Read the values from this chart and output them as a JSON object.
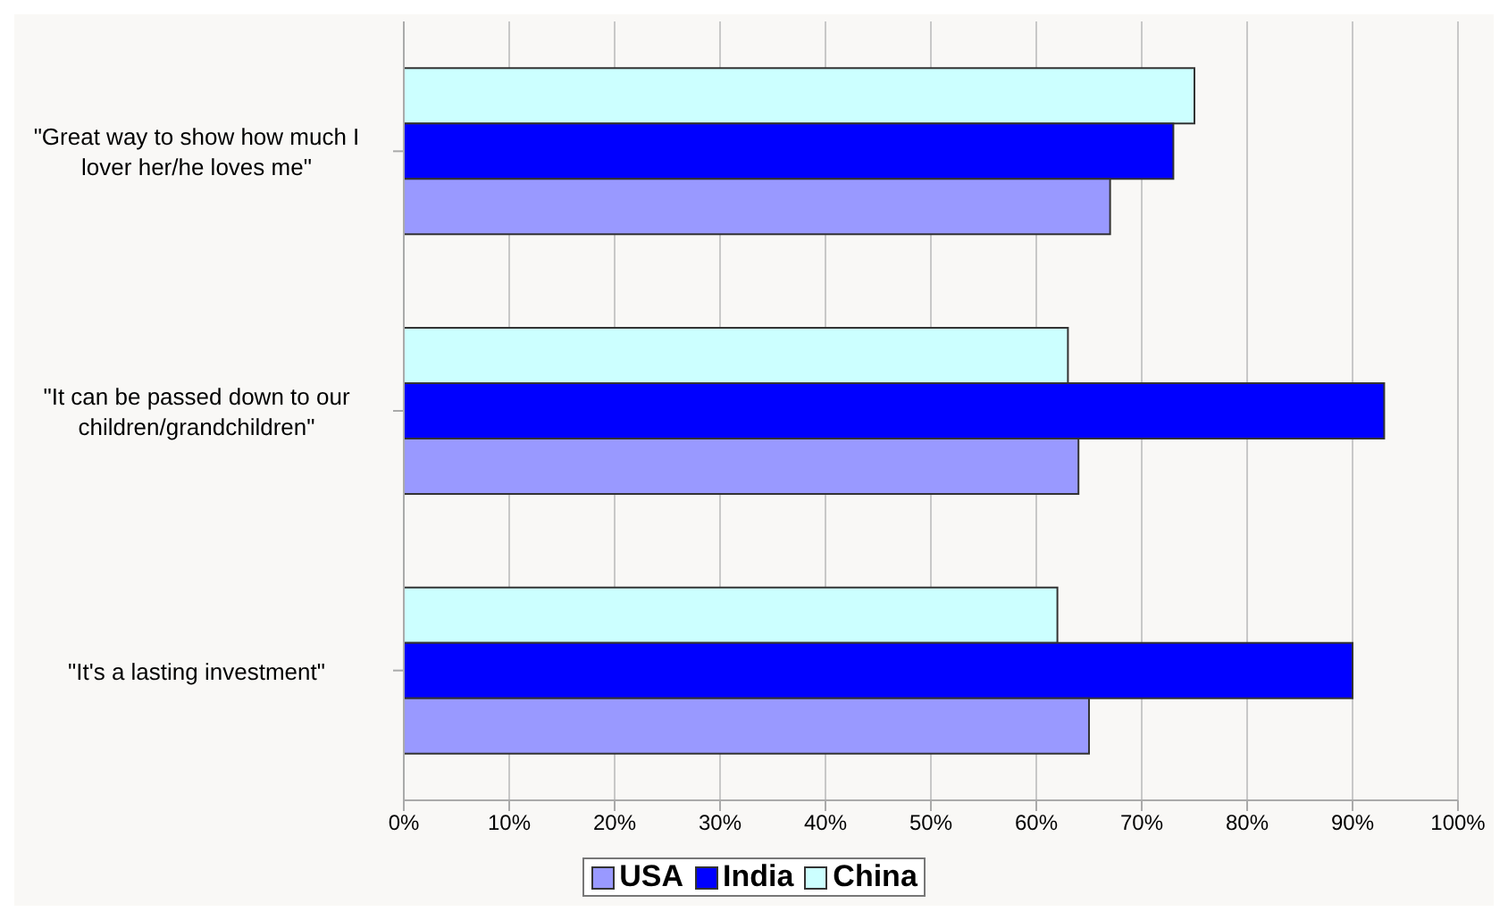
{
  "chart_data": {
    "type": "bar",
    "orientation": "horizontal",
    "categories": [
      "\"Great way to show how much I lover her/he loves me\"",
      "\"It can be passed down to our children/grandchildren\"",
      "\"It's a lasting investment\""
    ],
    "series": [
      {
        "name": "USA",
        "color": "#9999ff",
        "values": [
          67,
          64,
          65
        ]
      },
      {
        "name": "India",
        "color": "#0000ff",
        "values": [
          73,
          93,
          90
        ]
      },
      {
        "name": "China",
        "color": "#ccffff",
        "values": [
          75,
          63,
          62
        ]
      }
    ],
    "xlim": [
      0,
      100
    ],
    "xticks": [
      {
        "value": 0,
        "label": "0%"
      },
      {
        "value": 10,
        "label": "10%"
      },
      {
        "value": 20,
        "label": "20%"
      },
      {
        "value": 30,
        "label": "30%"
      },
      {
        "value": 40,
        "label": "40%"
      },
      {
        "value": 50,
        "label": "50%"
      },
      {
        "value": 60,
        "label": "60%"
      },
      {
        "value": 70,
        "label": "70%"
      },
      {
        "value": 80,
        "label": "80%"
      },
      {
        "value": 90,
        "label": "90%"
      },
      {
        "value": 100,
        "label": "100%"
      }
    ],
    "grid": "x",
    "legend": "bottom"
  }
}
